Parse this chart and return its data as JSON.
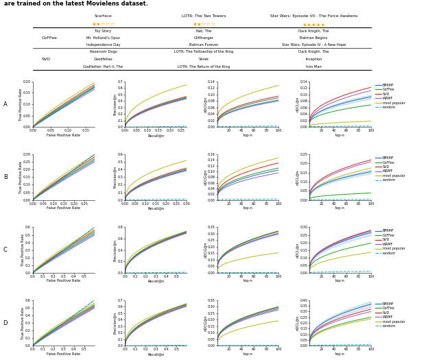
{
  "title_text": "are trained on the latest Movielens dataset.",
  "header_movies": [
    "Scarface",
    "LOTR: The Two Towers",
    "Star Wars: Episode VII - The Force Awakens"
  ],
  "header_stars": [
    2,
    2,
    5
  ],
  "coffee_movies_col1": [
    "Toy Story",
    "Mr. Holland's Opus",
    "Independence Day"
  ],
  "coffee_movies_col2": [
    "Net, The",
    "Cliffhanger",
    "Batman Forever"
  ],
  "coffee_movies_col3": [
    "Dark Knight, The",
    "Batman Begins",
    "Star Wars: Episode IV - A New Hope"
  ],
  "svd_movies_col1": [
    "Reservoir Dogs",
    "Goodfellas",
    "Godfather: Part II, The"
  ],
  "svd_movies_col2": [
    "LOTR: The Fellowship of the Ring",
    "Shrek",
    "LOTR: The Return of the King"
  ],
  "svd_movies_col3": [
    "Dark Knight, The",
    "Inception",
    "Iron Man"
  ],
  "row_labels": [
    "A",
    "B",
    "C",
    "D"
  ],
  "colors": {
    "BPRMF": "#1f77b4",
    "CoFFee": "#2ca02c",
    "SVD": "#d62728",
    "WRMF": "#9467bd",
    "most_popular": "#bcbd22",
    "random": "#17becf"
  },
  "legend_labels": [
    "BPRMF",
    "CoFFee",
    "SVD",
    "WRMF",
    "most popular",
    "random"
  ],
  "axes": {
    "A_roc": {
      "xlim": [
        0.0,
        0.175
      ],
      "ylim": [
        0.0,
        0.2
      ],
      "xticks": [
        0.0,
        0.05,
        0.1,
        0.15
      ],
      "yticks": [
        0.0,
        0.05,
        0.1,
        0.15,
        0.2
      ]
    },
    "A_prec": {
      "xlim": [
        0.0,
        0.275
      ],
      "ylim": [
        0.0,
        0.7
      ],
      "xticks": [
        0.0,
        0.05,
        0.1,
        0.15,
        0.2,
        0.25
      ],
      "yticks": [
        0.0,
        0.1,
        0.2,
        0.3,
        0.4,
        0.5,
        0.6,
        0.7
      ]
    },
    "A_ndcg": {
      "xlim": [
        1,
        100
      ],
      "ylim": [
        0.0,
        0.14
      ],
      "xticks": [
        20,
        40,
        60,
        80,
        100
      ],
      "yticks": [
        0.0,
        0.02,
        0.04,
        0.06,
        0.08,
        0.1,
        0.12,
        0.14
      ]
    },
    "A_ndcl": {
      "xlim": [
        1,
        100
      ],
      "ylim": [
        0.0,
        0.14
      ],
      "xticks": [
        20,
        40,
        60,
        80,
        100
      ],
      "yticks": [
        0.0,
        0.02,
        0.04,
        0.06,
        0.08,
        0.1,
        0.12,
        0.14
      ]
    },
    "B_roc": {
      "xlim": [
        0.0,
        0.3
      ],
      "ylim": [
        0.0,
        0.3
      ],
      "xticks": [
        0.0,
        0.05,
        0.1,
        0.15,
        0.2,
        0.25
      ],
      "yticks": [
        0.0,
        0.05,
        0.1,
        0.15,
        0.2,
        0.25,
        0.3
      ]
    },
    "B_prec": {
      "xlim": [
        0.0,
        0.3
      ],
      "ylim": [
        0.0,
        0.6
      ],
      "xticks": [
        0.0,
        0.05,
        0.1,
        0.15,
        0.2,
        0.25,
        0.3
      ],
      "yticks": [
        0.0,
        0.1,
        0.2,
        0.3,
        0.4,
        0.5,
        0.6
      ]
    },
    "B_ndcg": {
      "xlim": [
        1,
        100
      ],
      "ylim": [
        0.0,
        0.16
      ],
      "xticks": [
        20,
        40,
        60,
        80,
        100
      ],
      "yticks": [
        0.0,
        0.02,
        0.04,
        0.06,
        0.08,
        0.1,
        0.12,
        0.14,
        0.16
      ]
    },
    "B_ndcl": {
      "xlim": [
        1,
        100
      ],
      "ylim": [
        0.0,
        0.25
      ],
      "xticks": [
        20,
        40,
        60,
        80,
        100
      ],
      "yticks": [
        0.0,
        0.05,
        0.1,
        0.15,
        0.2,
        0.25
      ]
    },
    "C_roc": {
      "xlim": [
        0.0,
        0.6
      ],
      "ylim": [
        0.0,
        0.6
      ],
      "xticks": [
        0.0,
        0.1,
        0.2,
        0.3,
        0.4,
        0.5
      ],
      "yticks": [
        0.0,
        0.1,
        0.2,
        0.3,
        0.4,
        0.5,
        0.6
      ]
    },
    "C_prec": {
      "xlim": [
        0.0,
        0.6
      ],
      "ylim": [
        0.0,
        0.8
      ],
      "xticks": [
        0.0,
        0.1,
        0.2,
        0.3,
        0.4,
        0.5
      ],
      "yticks": [
        0.0,
        0.2,
        0.4,
        0.6,
        0.8
      ]
    },
    "C_ndcg": {
      "xlim": [
        1,
        100
      ],
      "ylim": [
        0.0,
        0.35
      ],
      "xticks": [
        20,
        40,
        60,
        80,
        100
      ],
      "yticks": [
        0.0,
        0.05,
        0.1,
        0.15,
        0.2,
        0.25,
        0.3,
        0.35
      ]
    },
    "C_ndcl": {
      "xlim": [
        1,
        100
      ],
      "ylim": [
        0.0,
        0.3
      ],
      "xticks": [
        20,
        40,
        60,
        80,
        100
      ],
      "yticks": [
        0.0,
        0.05,
        0.1,
        0.15,
        0.2,
        0.25,
        0.3
      ]
    },
    "D_roc": {
      "xlim": [
        0.0,
        0.6
      ],
      "ylim": [
        0.0,
        0.6
      ],
      "xticks": [
        0.0,
        0.1,
        0.2,
        0.3,
        0.4,
        0.5
      ],
      "yticks": [
        0.0,
        0.1,
        0.2,
        0.3,
        0.4,
        0.5,
        0.6
      ]
    },
    "D_prec": {
      "xlim": [
        0.0,
        0.6
      ],
      "ylim": [
        0.0,
        0.7
      ],
      "xticks": [
        0.0,
        0.1,
        0.2,
        0.3,
        0.4,
        0.5
      ],
      "yticks": [
        0.0,
        0.1,
        0.2,
        0.3,
        0.4,
        0.5,
        0.6,
        0.7
      ]
    },
    "D_ndcg": {
      "xlim": [
        1,
        100
      ],
      "ylim": [
        0.0,
        0.35
      ],
      "xticks": [
        20,
        40,
        60,
        80,
        100
      ],
      "yticks": [
        0.0,
        0.05,
        0.1,
        0.15,
        0.2,
        0.25,
        0.3,
        0.35
      ]
    },
    "D_ndcl": {
      "xlim": [
        1,
        100
      ],
      "ylim": [
        0.0,
        0.4
      ],
      "xticks": [
        20,
        40,
        60,
        80,
        100
      ],
      "yticks": [
        0.0,
        0.05,
        0.1,
        0.15,
        0.2,
        0.25,
        0.3,
        0.35,
        0.4
      ]
    }
  }
}
